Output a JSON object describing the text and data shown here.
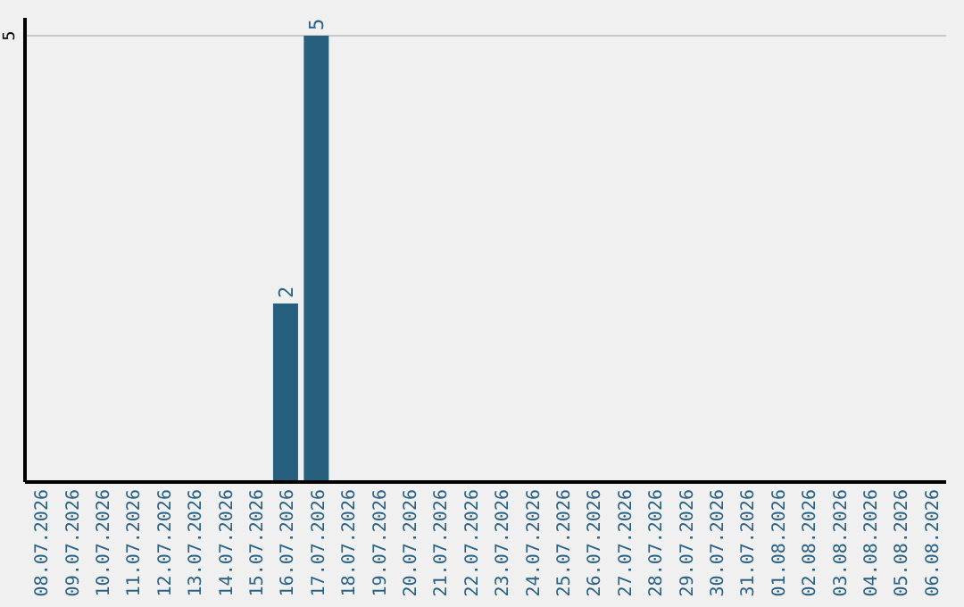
{
  "chart_data": {
    "type": "bar",
    "categories": [
      "08.07.2026",
      "09.07.2026",
      "10.07.2026",
      "11.07.2026",
      "12.07.2026",
      "13.07.2026",
      "14.07.2026",
      "15.07.2026",
      "16.07.2026",
      "17.07.2026",
      "18.07.2026",
      "19.07.2026",
      "20.07.2026",
      "21.07.2026",
      "22.07.2026",
      "23.07.2026",
      "24.07.2026",
      "25.07.2026",
      "26.07.2026",
      "27.07.2026",
      "28.07.2026",
      "29.07.2026",
      "30.07.2026",
      "31.07.2026",
      "01.08.2026",
      "02.08.2026",
      "03.08.2026",
      "04.08.2026",
      "05.08.2026",
      "06.08.2026"
    ],
    "values": [
      0,
      0,
      0,
      0,
      0,
      0,
      0,
      0,
      2,
      5,
      0,
      0,
      0,
      0,
      0,
      0,
      0,
      0,
      0,
      0,
      0,
      0,
      0,
      0,
      0,
      0,
      0,
      0,
      0,
      0
    ],
    "value_labels": [
      null,
      null,
      null,
      null,
      null,
      null,
      null,
      null,
      "2",
      "5",
      null,
      null,
      null,
      null,
      null,
      null,
      null,
      null,
      null,
      null,
      null,
      null,
      null,
      null,
      null,
      null,
      null,
      null,
      null,
      null
    ],
    "color": "#27607f",
    "ylim": [
      0,
      5.2
    ],
    "yticks": [
      5
    ],
    "grid": "y"
  }
}
